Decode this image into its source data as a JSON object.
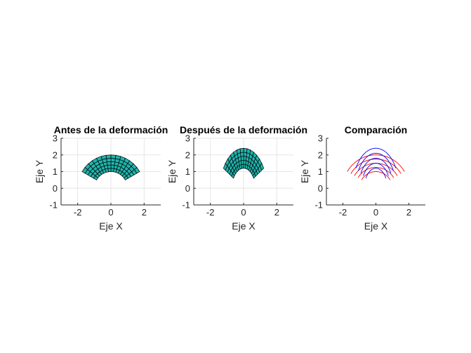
{
  "chart_data": [
    {
      "type": "mesh",
      "title": "Antes de la deformación",
      "xlabel": "Eje X",
      "ylabel": "Eje Y",
      "xlim": [
        -3,
        3
      ],
      "ylim": [
        -1,
        3
      ],
      "xticks": [
        "-2",
        "0",
        "2"
      ],
      "yticks": [
        "-1",
        "0",
        "1",
        "2",
        "3"
      ],
      "grid": true,
      "face_color": "#1fb5ad",
      "edge_color": "#000000",
      "mesh": {
        "r_inner": 1,
        "r_outer": 2,
        "theta_start_deg": 30,
        "theta_end_deg": 150,
        "radial_divisions": 5,
        "angular_divisions": 14
      }
    },
    {
      "type": "mesh",
      "title": "Después de la deformación",
      "xlabel": "Eje X",
      "ylabel": "Eje Y",
      "xlim": [
        -3,
        3
      ],
      "ylim": [
        -1,
        3
      ],
      "xticks": [
        "-2",
        "0",
        "2"
      ],
      "yticks": [
        "-1",
        "0",
        "1",
        "2",
        "3"
      ],
      "grid": true,
      "face_color": "#1fb5ad",
      "edge_color": "#000000",
      "mesh": {
        "r_inner": 1,
        "r_outer": 2,
        "theta_start_deg": 30,
        "theta_end_deg": 150,
        "radial_divisions": 5,
        "angular_divisions": 14,
        "x_scale": 0.7,
        "y_scale": 1.2
      }
    },
    {
      "type": "line",
      "title": "Comparación",
      "xlabel": "Eje X",
      "ylabel": "Eje Y",
      "xlim": [
        -3,
        3
      ],
      "ylim": [
        -1,
        3
      ],
      "xticks": [
        "-2",
        "0",
        "2"
      ],
      "yticks": [
        "-1",
        "0",
        "1",
        "2",
        "3"
      ],
      "grid": false,
      "series": [
        {
          "color": "#ff0000",
          "radii": [
            1,
            1.25,
            1.5,
            1.75,
            2
          ],
          "theta_start_deg": 30,
          "theta_end_deg": 150,
          "x_scale": 1,
          "y_scale": 1
        },
        {
          "color": "#0000ff",
          "radii": [
            1,
            1.25,
            1.5,
            1.75,
            2
          ],
          "theta_start_deg": 30,
          "theta_end_deg": 150,
          "x_scale": 0.7,
          "y_scale": 1.2
        }
      ]
    }
  ]
}
